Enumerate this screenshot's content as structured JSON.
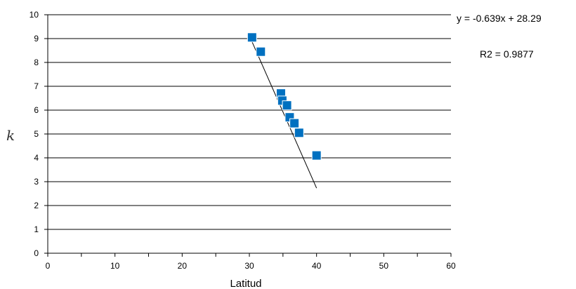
{
  "chart_data": {
    "type": "scatter",
    "xlabel": "Latitud",
    "ylabel": "k",
    "xlim": [
      0,
      60
    ],
    "ylim": [
      0,
      10
    ],
    "x_ticks": [
      0,
      10,
      20,
      30,
      40,
      50,
      60
    ],
    "y_ticks": [
      0,
      1,
      2,
      3,
      4,
      5,
      6,
      7,
      8,
      9,
      10
    ],
    "grid": "horizontal",
    "marker_color": "#0070C0",
    "series": [
      {
        "points": [
          {
            "x": 30.4,
            "y": 9.05
          },
          {
            "x": 31.7,
            "y": 8.45
          },
          {
            "x": 34.7,
            "y": 6.7
          },
          {
            "x": 34.9,
            "y": 6.4
          },
          {
            "x": 35.6,
            "y": 6.2
          },
          {
            "x": 36.0,
            "y": 5.7
          },
          {
            "x": 36.7,
            "y": 5.45
          },
          {
            "x": 37.4,
            "y": 5.05
          },
          {
            "x": 40.0,
            "y": 4.1
          }
        ]
      }
    ],
    "trendline": {
      "slope": -0.639,
      "intercept": 28.29,
      "x_range": [
        30.4,
        40.0
      ],
      "equation": "y = -0.639x + 28.29",
      "r2": "R2 = 0.9877"
    }
  }
}
